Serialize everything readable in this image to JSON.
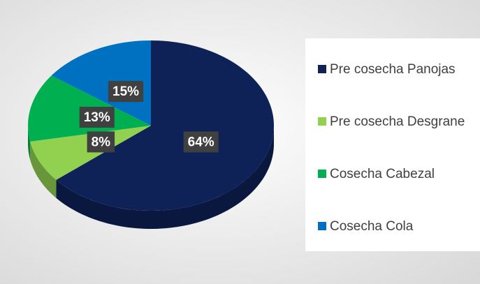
{
  "chart_data": {
    "type": "pie",
    "three_d": true,
    "categories": [
      "Pre cosecha Panojas",
      "Pre cosecha Desgrane",
      "Cosecha Cabezal",
      "Cosecha Cola"
    ],
    "values": [
      64,
      8,
      13,
      15
    ],
    "value_labels": [
      "64%",
      "8%",
      "13%",
      "15%"
    ],
    "colors": [
      "#0e2258",
      "#92d050",
      "#00b050",
      "#0070c0"
    ],
    "legend": "right"
  }
}
